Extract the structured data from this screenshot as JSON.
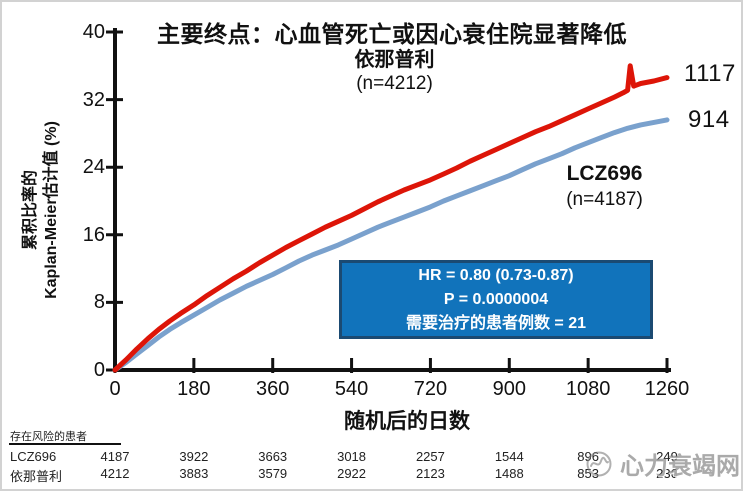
{
  "chart_data": {
    "type": "line",
    "title": "主要终点：心血管死亡或因心衰住院显著降低",
    "xlabel": "随机后的日数",
    "ylabel_lines": [
      "累积比率的",
      "Kaplan-Meier估计值 (%)"
    ],
    "xlim": [
      0,
      1260
    ],
    "ylim": [
      0,
      40
    ],
    "xticks": [
      "0",
      "180",
      "360",
      "540",
      "720",
      "900",
      "1080",
      "1260"
    ],
    "yticks": [
      "0",
      "8",
      "16",
      "24",
      "32",
      "40"
    ],
    "grid": false,
    "series": [
      {
        "name": "LCZ696",
        "n_label": "(n=4187)",
        "color": "#7aa1cd",
        "end_label": "914",
        "points": [
          [
            0,
            0
          ],
          [
            25,
            0.9
          ],
          [
            50,
            1.9
          ],
          [
            75,
            2.9
          ],
          [
            100,
            3.9
          ],
          [
            125,
            4.8
          ],
          [
            150,
            5.6
          ],
          [
            180,
            6.5
          ],
          [
            210,
            7.4
          ],
          [
            240,
            8.3
          ],
          [
            270,
            9.1
          ],
          [
            300,
            9.9
          ],
          [
            330,
            10.6
          ],
          [
            360,
            11.3
          ],
          [
            390,
            12.1
          ],
          [
            420,
            12.9
          ],
          [
            450,
            13.6
          ],
          [
            480,
            14.2
          ],
          [
            510,
            14.8
          ],
          [
            540,
            15.5
          ],
          [
            570,
            16.2
          ],
          [
            600,
            16.9
          ],
          [
            630,
            17.5
          ],
          [
            660,
            18.1
          ],
          [
            690,
            18.7
          ],
          [
            720,
            19.3
          ],
          [
            750,
            20.0
          ],
          [
            780,
            20.6
          ],
          [
            810,
            21.2
          ],
          [
            840,
            21.8
          ],
          [
            870,
            22.4
          ],
          [
            900,
            23.0
          ],
          [
            930,
            23.7
          ],
          [
            960,
            24.4
          ],
          [
            990,
            25.0
          ],
          [
            1020,
            25.6
          ],
          [
            1050,
            26.3
          ],
          [
            1080,
            26.9
          ],
          [
            1110,
            27.5
          ],
          [
            1140,
            28.1
          ],
          [
            1170,
            28.6
          ],
          [
            1200,
            29.0
          ],
          [
            1230,
            29.3
          ],
          [
            1260,
            29.6
          ]
        ]
      },
      {
        "name": "依那普利",
        "n_label": "(n=4212)",
        "color": "#dd1508",
        "end_label": "1117",
        "points": [
          [
            0,
            0
          ],
          [
            25,
            1.2
          ],
          [
            50,
            2.5
          ],
          [
            75,
            3.7
          ],
          [
            100,
            4.8
          ],
          [
            125,
            5.8
          ],
          [
            150,
            6.7
          ],
          [
            180,
            7.7
          ],
          [
            210,
            8.8
          ],
          [
            240,
            9.8
          ],
          [
            270,
            10.8
          ],
          [
            300,
            11.7
          ],
          [
            330,
            12.7
          ],
          [
            360,
            13.6
          ],
          [
            390,
            14.5
          ],
          [
            420,
            15.3
          ],
          [
            450,
            16.1
          ],
          [
            480,
            16.9
          ],
          [
            510,
            17.6
          ],
          [
            540,
            18.3
          ],
          [
            570,
            19.1
          ],
          [
            600,
            19.9
          ],
          [
            630,
            20.6
          ],
          [
            660,
            21.3
          ],
          [
            690,
            21.9
          ],
          [
            720,
            22.5
          ],
          [
            750,
            23.2
          ],
          [
            780,
            23.9
          ],
          [
            810,
            24.7
          ],
          [
            840,
            25.4
          ],
          [
            870,
            26.1
          ],
          [
            900,
            26.8
          ],
          [
            930,
            27.5
          ],
          [
            960,
            28.2
          ],
          [
            990,
            28.8
          ],
          [
            1020,
            29.5
          ],
          [
            1050,
            30.2
          ],
          [
            1080,
            30.9
          ],
          [
            1110,
            31.6
          ],
          [
            1140,
            32.3
          ],
          [
            1160,
            32.8
          ],
          [
            1170,
            33.1
          ],
          [
            1176,
            36.0
          ],
          [
            1184,
            33.6
          ],
          [
            1200,
            33.9
          ],
          [
            1230,
            34.2
          ],
          [
            1260,
            34.6
          ]
        ]
      }
    ],
    "annotation_box": {
      "lines": [
        "HR = 0.80 (0.73-0.87)",
        "P = 0.0000004",
        "需要治疗的患者例数 = 21"
      ],
      "bg_color": "#1173bb",
      "border_color": "#1b4a72",
      "text_color": "#ffffff"
    }
  },
  "risk_table": {
    "header": "存在风险的患者",
    "rows": [
      {
        "label": "LCZ696",
        "values": [
          "4187",
          "3922",
          "3663",
          "3018",
          "2257",
          "1544",
          "896",
          "249"
        ]
      },
      {
        "label": "依那普利",
        "values": [
          "4212",
          "3883",
          "3579",
          "2922",
          "2123",
          "1488",
          "853",
          "236"
        ]
      }
    ]
  },
  "watermark": {
    "text": "心力衰竭网"
  }
}
